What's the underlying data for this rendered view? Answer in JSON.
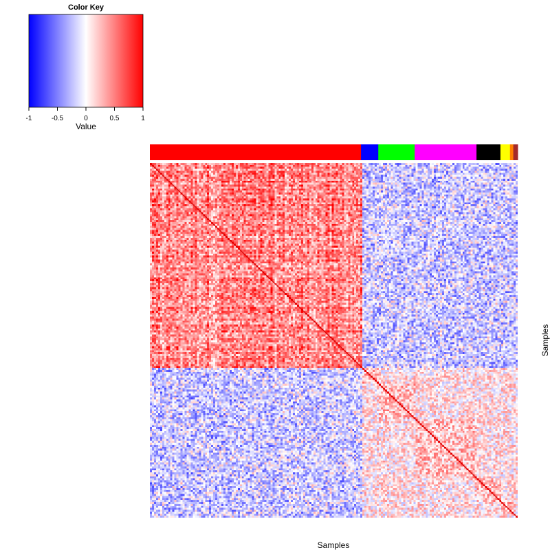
{
  "chart_data": {
    "type": "heatmap",
    "title": "",
    "xlabel": "Samples",
    "ylabel": "Samples",
    "color_key": {
      "title": "Color Key",
      "label": "Value",
      "range": [
        -1,
        1
      ],
      "ticks": [
        "-1",
        "-0.5",
        "0",
        "0.5",
        "1"
      ],
      "colors": [
        "#0000ff",
        "#ffffff",
        "#ff0000"
      ]
    },
    "groups": [
      {
        "color": "#ff0000",
        "fraction": 0.574
      },
      {
        "color": "#0000ff",
        "fraction": 0.047
      },
      {
        "color": "#00ff00",
        "fraction": 0.099
      },
      {
        "color": "#ff00ff",
        "fraction": 0.168
      },
      {
        "color": "#000000",
        "fraction": 0.065
      },
      {
        "color": "#ffff00",
        "fraction": 0.026
      },
      {
        "color": "#ff7f00",
        "fraction": 0.009
      },
      {
        "color": "#a52a2a",
        "fraction": 0.012
      }
    ],
    "block_mean_correlation": {
      "within_group_1": 0.6,
      "between_group_1_and_others": -0.2,
      "within_other_groups": 0.1,
      "diagonal": 1
    }
  }
}
